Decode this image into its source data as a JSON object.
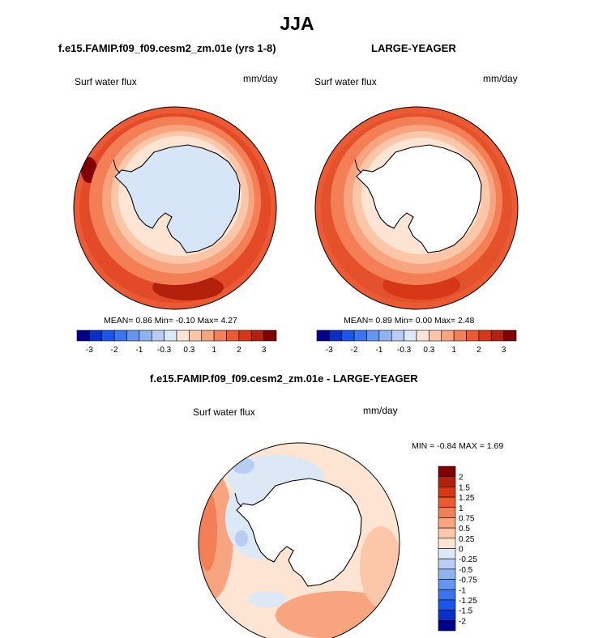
{
  "title": "JJA",
  "panel1": {
    "title": "f.e15.FAMIP.f09_f09.cesm2_zm.01e (yrs 1-8)",
    "variable": "Surf water flux",
    "units": "mm/day",
    "stats": "MEAN=   0.86  Min=   -0.10  Max=    4.27"
  },
  "panel2": {
    "title": "LARGE-YEAGER",
    "variable": "Surf water flux",
    "units": "mm/day",
    "stats": "MEAN=   0.89  Min=   0.00  Max=    2.48"
  },
  "panel3": {
    "title": "f.e15.FAMIP.f09_f09.cesm2_zm.01e - LARGE-YEAGER",
    "variable": "Surf water flux",
    "units": "mm/day",
    "stats": "MIN =  -0.84 MAX =    1.69"
  },
  "colorbar_top": {
    "labels": [
      "-3",
      "-2",
      "-1",
      "-0.3",
      "0.3",
      "1",
      "2",
      "3"
    ],
    "colors": [
      "#00008f",
      "#0a2ec8",
      "#1a55e8",
      "#3a74ee",
      "#6495f0",
      "#8fb2f0",
      "#b7cdf3",
      "#dde8f7",
      "#fde4d3",
      "#fbc7a8",
      "#f8a57f",
      "#f47e56",
      "#ec5a33",
      "#d53717",
      "#b3200b",
      "#800000"
    ]
  },
  "colorbar_diff": {
    "labels": [
      "2",
      "1.5",
      "1.25",
      "1",
      "0.75",
      "0.5",
      "0.25",
      "0",
      "-0.25",
      "-0.5",
      "-0.75",
      "-1",
      "-1.25",
      "-1.5",
      "-2"
    ],
    "colors": [
      "#800000",
      "#b3200b",
      "#d53717",
      "#ec5a33",
      "#f47e56",
      "#f8a57f",
      "#fbc7a8",
      "#fde4d3",
      "#dde8f7",
      "#b7cdf3",
      "#8fb2f0",
      "#6495f0",
      "#3a74ee",
      "#1a55e8",
      "#0a2ec8",
      "#00008f"
    ]
  }
}
